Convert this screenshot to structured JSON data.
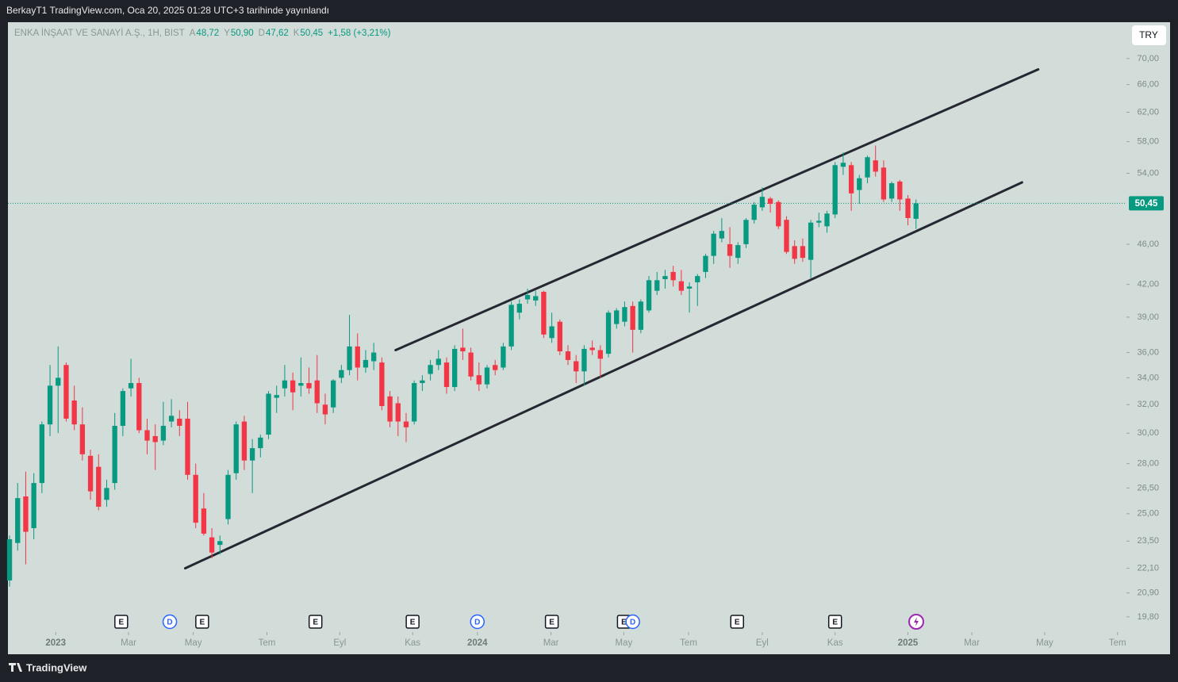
{
  "header": {
    "title": "BerkayT1 TradingView.com, Oca 20, 2025 01:28 UTC+3 tarihinde yayınlandı"
  },
  "footer": {
    "brand": "TradingView"
  },
  "currency_button": "TRY",
  "chart_data": {
    "type": "candlestick",
    "symbol": "ENKA İNŞAAT VE SANAYİ A.Ş., 1H, BIST",
    "legend": [
      {
        "key": "A",
        "value": "48,72"
      },
      {
        "key": "Y",
        "value": "50,90"
      },
      {
        "key": "D",
        "value": "47,62"
      },
      {
        "key": "K",
        "value": "50,45"
      }
    ],
    "change": "+1,58 (+3,21%)",
    "up_color": "#089981",
    "down_color": "#f23645",
    "log_scale": true,
    "ylim": [
      19.2,
      76
    ],
    "yticks": [
      {
        "value": 70,
        "label": "70,00"
      },
      {
        "value": 66,
        "label": "66,00"
      },
      {
        "value": 62,
        "label": "62,00"
      },
      {
        "value": 58,
        "label": "58,00"
      },
      {
        "value": 54,
        "label": "54,00"
      },
      {
        "value": 46,
        "label": "46,00"
      },
      {
        "value": 42,
        "label": "42,00"
      },
      {
        "value": 39,
        "label": "39,00"
      },
      {
        "value": 36,
        "label": "36,00"
      },
      {
        "value": 34,
        "label": "34,00"
      },
      {
        "value": 32,
        "label": "32,00"
      },
      {
        "value": 30,
        "label": "30,00"
      },
      {
        "value": 28,
        "label": "28,00"
      },
      {
        "value": 26.5,
        "label": "26,50"
      },
      {
        "value": 25,
        "label": "25,00"
      },
      {
        "value": 23.5,
        "label": "23,50"
      },
      {
        "value": 22.1,
        "label": "22,10"
      },
      {
        "value": 20.9,
        "label": "20,90"
      },
      {
        "value": 19.8,
        "label": "19,80"
      }
    ],
    "xlim": [
      -0.2,
      138
    ],
    "xticks": [
      {
        "value": 5.7,
        "label": "2023"
      },
      {
        "value": 14.7,
        "label": "Mar"
      },
      {
        "value": 22.7,
        "label": "May"
      },
      {
        "value": 31.8,
        "label": "Tem"
      },
      {
        "value": 40.8,
        "label": "Eyl"
      },
      {
        "value": 49.8,
        "label": "Kas"
      },
      {
        "value": 57.8,
        "label": "2024"
      },
      {
        "value": 66.9,
        "label": "Mar"
      },
      {
        "value": 75.9,
        "label": "May"
      },
      {
        "value": 83.9,
        "label": "Tem"
      },
      {
        "value": 93.0,
        "label": "Eyl"
      },
      {
        "value": 102.0,
        "label": "Kas"
      },
      {
        "value": 111.0,
        "label": "2025"
      },
      {
        "value": 118.9,
        "label": "Mar"
      },
      {
        "value": 127.9,
        "label": "May"
      },
      {
        "value": 136.9,
        "label": "Tem"
      }
    ],
    "last_price": {
      "value": 50.45,
      "label": "50,45"
    },
    "ohlc": [
      [
        21.5,
        23.8,
        21.2,
        23.6
      ],
      [
        23.4,
        26.8,
        23.0,
        25.9
      ],
      [
        26.0,
        27.5,
        22.3,
        24.0
      ],
      [
        24.2,
        27.4,
        23.6,
        26.8
      ],
      [
        26.8,
        30.8,
        26.2,
        30.6
      ],
      [
        30.6,
        35.0,
        29.8,
        33.4
      ],
      [
        33.4,
        36.5,
        30.0,
        34.0
      ],
      [
        35.0,
        35.2,
        30.8,
        31.0
      ],
      [
        32.3,
        33.4,
        30.2,
        30.6
      ],
      [
        30.6,
        31.8,
        28.2,
        28.6
      ],
      [
        28.5,
        28.9,
        25.8,
        26.3
      ],
      [
        27.8,
        28.6,
        25.2,
        25.4
      ],
      [
        25.8,
        27.0,
        25.4,
        26.5
      ],
      [
        26.8,
        31.4,
        26.4,
        30.5
      ],
      [
        30.5,
        33.2,
        29.8,
        33.0
      ],
      [
        33.2,
        35.5,
        32.6,
        33.6
      ],
      [
        33.6,
        34.0,
        30.0,
        30.2
      ],
      [
        30.2,
        31.0,
        28.6,
        29.5
      ],
      [
        29.8,
        30.6,
        27.6,
        29.4
      ],
      [
        29.5,
        32.2,
        29.2,
        30.5
      ],
      [
        30.8,
        32.4,
        30.4,
        31.2
      ],
      [
        31.0,
        31.6,
        29.8,
        30.5
      ],
      [
        31.0,
        32.2,
        27.0,
        27.3
      ],
      [
        27.3,
        28.0,
        24.2,
        24.5
      ],
      [
        25.3,
        26.2,
        23.8,
        23.9
      ],
      [
        23.7,
        24.2,
        22.6,
        22.9
      ],
      [
        23.3,
        23.8,
        22.8,
        23.5
      ],
      [
        24.7,
        27.6,
        24.4,
        27.3
      ],
      [
        27.4,
        30.8,
        27.0,
        30.6
      ],
      [
        30.8,
        31.2,
        27.6,
        28.2
      ],
      [
        28.2,
        29.6,
        26.2,
        29.0
      ],
      [
        29.0,
        29.9,
        28.4,
        29.7
      ],
      [
        29.9,
        33.0,
        29.6,
        32.8
      ],
      [
        32.5,
        33.4,
        31.4,
        32.7
      ],
      [
        33.2,
        35.0,
        32.6,
        33.8
      ],
      [
        33.8,
        34.4,
        31.6,
        32.9
      ],
      [
        33.4,
        35.6,
        32.6,
        33.6
      ],
      [
        33.6,
        34.8,
        32.8,
        33.2
      ],
      [
        33.8,
        35.8,
        31.4,
        32.1
      ],
      [
        32.0,
        32.8,
        30.6,
        31.3
      ],
      [
        31.8,
        33.9,
        31.4,
        33.8
      ],
      [
        34.0,
        35.0,
        33.6,
        34.6
      ],
      [
        34.6,
        39.2,
        34.2,
        36.5
      ],
      [
        36.5,
        37.6,
        33.8,
        34.8
      ],
      [
        34.8,
        36.2,
        34.4,
        35.4
      ],
      [
        35.3,
        36.8,
        34.6,
        36.0
      ],
      [
        35.2,
        35.6,
        31.6,
        31.9
      ],
      [
        32.6,
        33.0,
        30.4,
        30.8
      ],
      [
        32.1,
        32.6,
        29.8,
        30.8
      ],
      [
        30.8,
        31.4,
        29.4,
        30.4
      ],
      [
        30.8,
        33.8,
        30.6,
        33.6
      ],
      [
        33.6,
        34.2,
        33.0,
        33.8
      ],
      [
        34.3,
        35.4,
        33.8,
        35.0
      ],
      [
        35.0,
        36.2,
        34.6,
        35.5
      ],
      [
        35.2,
        35.6,
        32.8,
        33.3
      ],
      [
        33.3,
        36.6,
        33.0,
        36.3
      ],
      [
        36.4,
        38.0,
        35.4,
        36.1
      ],
      [
        36.0,
        36.4,
        33.8,
        34.1
      ],
      [
        34.2,
        35.2,
        33.0,
        33.5
      ],
      [
        33.5,
        35.0,
        33.2,
        34.8
      ],
      [
        35.0,
        35.4,
        34.2,
        34.6
      ],
      [
        34.8,
        36.8,
        34.6,
        36.5
      ],
      [
        36.5,
        40.4,
        36.2,
        40.1
      ],
      [
        39.4,
        40.6,
        38.8,
        40.2
      ],
      [
        40.6,
        41.6,
        40.2,
        41.0
      ],
      [
        40.5,
        41.4,
        40.0,
        40.9
      ],
      [
        41.3,
        41.4,
        37.2,
        37.5
      ],
      [
        37.2,
        39.4,
        36.8,
        38.2
      ],
      [
        38.6,
        38.8,
        35.8,
        36.1
      ],
      [
        36.1,
        36.6,
        35.0,
        35.4
      ],
      [
        35.3,
        35.8,
        33.6,
        34.5
      ],
      [
        34.5,
        36.6,
        33.4,
        36.3
      ],
      [
        36.4,
        37.0,
        35.8,
        36.2
      ],
      [
        36.2,
        36.6,
        34.0,
        35.5
      ],
      [
        35.9,
        39.6,
        35.6,
        39.4
      ],
      [
        38.4,
        39.8,
        38.0,
        39.6
      ],
      [
        38.6,
        40.4,
        38.2,
        39.9
      ],
      [
        40.0,
        40.4,
        36.0,
        37.9
      ],
      [
        37.9,
        40.6,
        37.6,
        40.4
      ],
      [
        39.6,
        42.8,
        39.4,
        42.4
      ],
      [
        41.4,
        43.2,
        41.0,
        42.4
      ],
      [
        42.5,
        43.4,
        41.6,
        42.8
      ],
      [
        43.2,
        43.8,
        41.8,
        42.4
      ],
      [
        42.3,
        43.4,
        41.0,
        41.4
      ],
      [
        41.6,
        42.2,
        39.4,
        41.8
      ],
      [
        42.2,
        43.0,
        40.0,
        42.8
      ],
      [
        43.2,
        45.0,
        42.6,
        44.8
      ],
      [
        44.8,
        47.4,
        44.0,
        47.1
      ],
      [
        46.6,
        48.8,
        46.2,
        47.4
      ],
      [
        46.0,
        47.8,
        43.6,
        44.8
      ],
      [
        44.6,
        46.2,
        44.0,
        45.9
      ],
      [
        46.0,
        48.8,
        45.6,
        48.6
      ],
      [
        48.6,
        50.6,
        48.2,
        50.3
      ],
      [
        50.0,
        52.3,
        49.6,
        51.2
      ],
      [
        51.0,
        51.2,
        49.4,
        50.4
      ],
      [
        50.6,
        50.8,
        47.6,
        47.9
      ],
      [
        48.6,
        49.0,
        45.0,
        45.2
      ],
      [
        45.8,
        46.4,
        44.0,
        44.5
      ],
      [
        45.8,
        46.6,
        44.2,
        44.6
      ],
      [
        44.4,
        48.6,
        42.6,
        48.3
      ],
      [
        48.3,
        49.4,
        47.8,
        48.5
      ],
      [
        47.9,
        49.6,
        47.2,
        49.3
      ],
      [
        49.2,
        55.4,
        48.8,
        55.0
      ],
      [
        54.8,
        56.6,
        53.8,
        55.3
      ],
      [
        55.0,
        55.4,
        49.6,
        51.6
      ],
      [
        52.0,
        53.8,
        50.4,
        53.4
      ],
      [
        53.5,
        56.2,
        52.8,
        56.0
      ],
      [
        55.6,
        57.5,
        53.6,
        54.2
      ],
      [
        54.7,
        55.6,
        50.6,
        50.9
      ],
      [
        51.0,
        53.0,
        50.6,
        52.8
      ],
      [
        53.0,
        53.2,
        49.6,
        50.9
      ],
      [
        51.0,
        51.4,
        48.0,
        48.8
      ],
      [
        48.72,
        50.9,
        47.62,
        50.45
      ]
    ],
    "trend_lines": [
      {
        "x": [
          47.7,
          127.1
        ],
        "y": [
          36.2,
          68.3
        ]
      },
      {
        "x": [
          21.7,
          125.1
        ],
        "y": [
          22.1,
          52.9
        ]
      }
    ],
    "events": [
      {
        "label": "E",
        "x": 13.8
      },
      {
        "label": "D",
        "x": 19.8
      },
      {
        "label": "E",
        "x": 23.8
      },
      {
        "label": "E",
        "x": 37.8
      },
      {
        "label": "E",
        "x": 49.8
      },
      {
        "label": "D",
        "x": 57.8
      },
      {
        "label": "E",
        "x": 67.0
      },
      {
        "label": "E",
        "x": 75.9
      },
      {
        "label": "D",
        "x": 77.0
      },
      {
        "label": "E",
        "x": 89.9
      },
      {
        "label": "E",
        "x": 102.0
      }
    ]
  }
}
